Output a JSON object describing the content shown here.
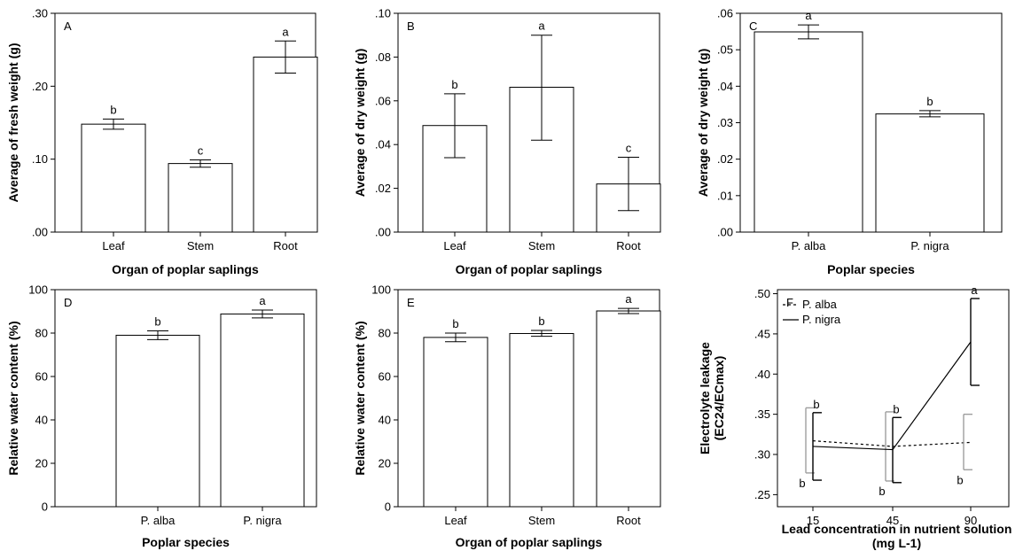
{
  "chart_data": [
    {
      "id": "A",
      "type": "bar",
      "panel_label": "A",
      "xlabel": "Organ of poplar saplings",
      "ylabel": "Average of fresh weight (g)",
      "categories": [
        "Leaf",
        "Stem",
        "Root"
      ],
      "values": [
        0.148,
        0.094,
        0.24
      ],
      "error_low": [
        0.141,
        0.089,
        0.218
      ],
      "error_high": [
        0.155,
        0.099,
        0.262
      ],
      "significance": [
        "b",
        "c",
        "a"
      ],
      "ylim": [
        0,
        0.3
      ],
      "yticks": [
        0,
        0.1,
        0.2,
        0.3
      ],
      "ytick_labels": [
        ".00",
        ".10",
        ".20",
        ".30"
      ]
    },
    {
      "id": "B",
      "type": "bar",
      "panel_label": "B",
      "xlabel": "Organ of poplar saplings",
      "ylabel": "Average of dry weight (g)",
      "categories": [
        "Leaf",
        "Stem",
        "Root"
      ],
      "values": [
        0.0487,
        0.0662,
        0.022
      ],
      "error_low": [
        0.034,
        0.042,
        0.0098
      ],
      "error_high": [
        0.0632,
        0.09,
        0.0342
      ],
      "significance": [
        "b",
        "a",
        "c"
      ],
      "ylim": [
        0,
        0.1
      ],
      "yticks": [
        0,
        0.02,
        0.04,
        0.06,
        0.08,
        0.1
      ],
      "ytick_labels": [
        ".00",
        ".02",
        ".04",
        ".06",
        ".08",
        ".10"
      ]
    },
    {
      "id": "C",
      "type": "bar",
      "panel_label": "C",
      "xlabel": "Poplar species",
      "ylabel": "Average of dry weight (g)",
      "categories": [
        "P. alba",
        "P. nigra"
      ],
      "values": [
        0.0549,
        0.0324
      ],
      "error_low": [
        0.053,
        0.0316
      ],
      "error_high": [
        0.0568,
        0.0333
      ],
      "significance": [
        "a",
        "b"
      ],
      "ylim": [
        0,
        0.06
      ],
      "yticks": [
        0,
        0.01,
        0.02,
        0.03,
        0.04,
        0.05,
        0.06
      ],
      "ytick_labels": [
        ".00",
        ".01",
        ".02",
        ".03",
        ".04",
        ".05",
        ".06"
      ]
    },
    {
      "id": "D",
      "type": "bar",
      "panel_label": "D",
      "xlabel": "Poplar species",
      "ylabel": "Relative water content (%)",
      "categories": [
        "P. alba",
        "P. nigra"
      ],
      "values": [
        79.0,
        88.8
      ],
      "error_low": [
        77.0,
        87.0
      ],
      "error_high": [
        81.0,
        90.6
      ],
      "significance": [
        "b",
        "a"
      ],
      "ylim": [
        0,
        100
      ],
      "yticks": [
        0,
        20,
        40,
        60,
        80,
        100
      ],
      "ytick_labels": [
        "0",
        "20",
        "40",
        "60",
        "80",
        "100"
      ]
    },
    {
      "id": "E",
      "type": "bar",
      "panel_label": "E",
      "xlabel": "Organ of poplar saplings",
      "ylabel": "Relative water content (%)",
      "categories": [
        "Leaf",
        "Stem",
        "Root"
      ],
      "values": [
        78.0,
        79.8,
        90.2
      ],
      "error_low": [
        76.0,
        78.5,
        89.0
      ],
      "error_high": [
        80.0,
        81.2,
        91.4
      ],
      "significance": [
        "b",
        "b",
        "a"
      ],
      "ylim": [
        0,
        100
      ],
      "yticks": [
        0,
        20,
        40,
        60,
        80,
        100
      ],
      "ytick_labels": [
        "0",
        "20",
        "40",
        "60",
        "80",
        "100"
      ]
    },
    {
      "id": "F",
      "type": "line",
      "panel_label": "F",
      "xlabel": "Lead concentration in nutrient solution",
      "xlabel_line2": "(mg L-1)",
      "ylabel": "Electrolyte leakage",
      "ylabel_line2": "(EC24/ECmax)",
      "categories": [
        "15",
        "45",
        "90"
      ],
      "ylim": [
        0.235,
        0.505
      ],
      "yticks": [
        0.25,
        0.3,
        0.35,
        0.4,
        0.45,
        0.5
      ],
      "ytick_labels": [
        ".25",
        ".30",
        ".35",
        ".40",
        ".45",
        ".50"
      ],
      "legend_position": "top-left",
      "series": [
        {
          "name": "P. alba",
          "style": "dashed",
          "color": "#000000",
          "error_color": "#9e9e9e",
          "values": [
            0.317,
            0.31,
            0.315
          ],
          "error_low": [
            0.277,
            0.267,
            0.281
          ],
          "error_high": [
            0.358,
            0.353,
            0.35
          ],
          "significance": [
            "b",
            "b",
            "b"
          ]
        },
        {
          "name": "P. nigra",
          "style": "solid",
          "color": "#000000",
          "error_color": "#000000",
          "values": [
            0.31,
            0.306,
            0.44
          ],
          "error_low": [
            0.268,
            0.265,
            0.386
          ],
          "error_high": [
            0.352,
            0.346,
            0.494
          ],
          "significance": [
            "b",
            "b",
            "a"
          ]
        }
      ]
    }
  ]
}
